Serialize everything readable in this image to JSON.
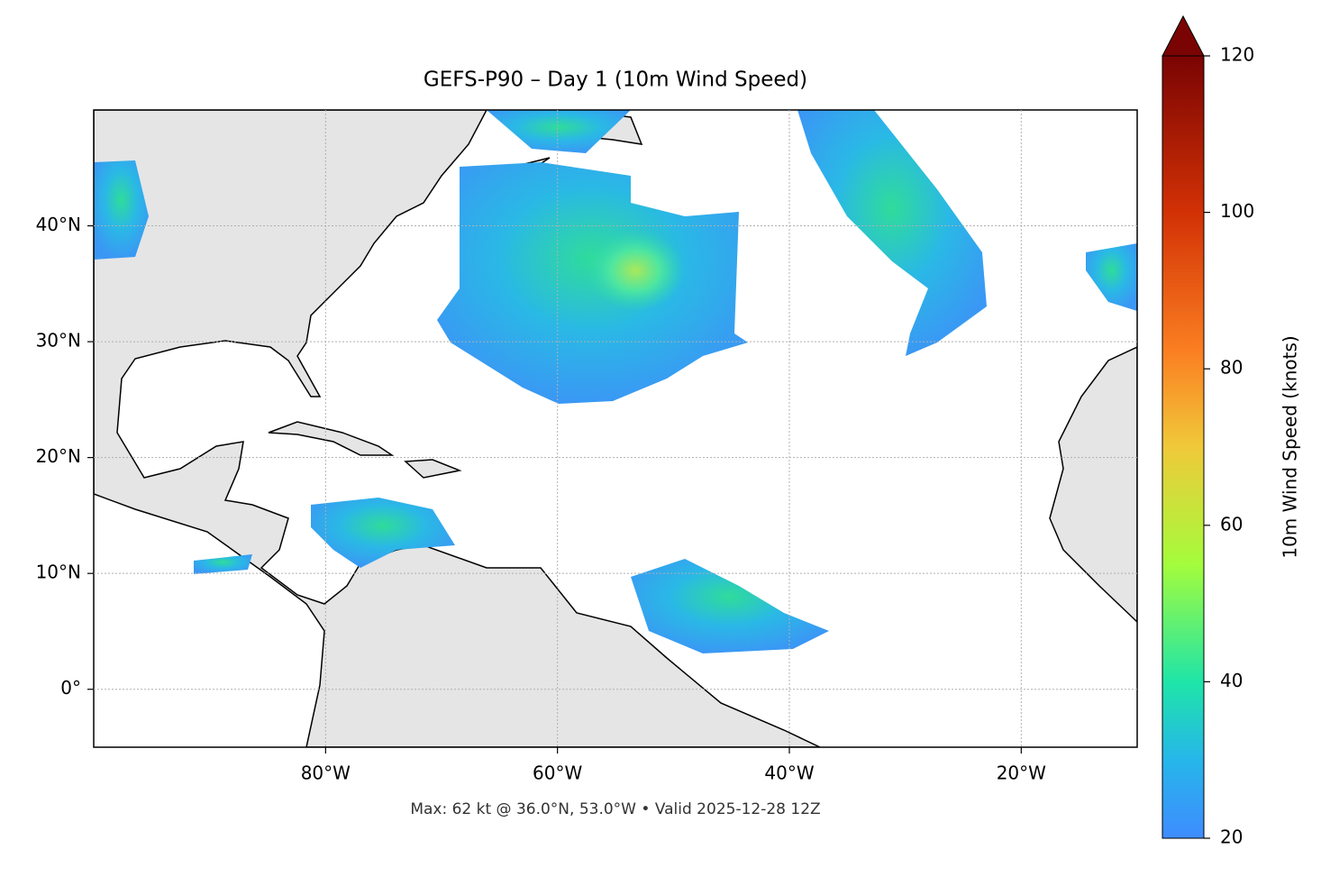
{
  "title": "GEFS-P90 – Day 1 (10m Wind Speed)",
  "map": {
    "xlim": [
      -100,
      -10
    ],
    "ylim": [
      -5,
      50
    ],
    "xticks": [
      {
        "value": -80,
        "label": "80°W"
      },
      {
        "value": -60,
        "label": "60°W"
      },
      {
        "value": -40,
        "label": "40°W"
      },
      {
        "value": -20,
        "label": "20°W"
      }
    ],
    "yticks": [
      {
        "value": 0,
        "label": "0°"
      },
      {
        "value": 10,
        "label": "10°N"
      },
      {
        "value": 20,
        "label": "20°N"
      },
      {
        "value": 30,
        "label": "30°N"
      },
      {
        "value": 40,
        "label": "40°N"
      }
    ]
  },
  "colorbar": {
    "label": "10m Wind Speed (knots)",
    "lim": [
      20,
      120
    ],
    "ticks": [
      20,
      40,
      60,
      80,
      100,
      120
    ]
  },
  "footer": "Max: 62 kt @ 36.0°N, 53.0°W • Valid 2025-12-28 12Z"
}
